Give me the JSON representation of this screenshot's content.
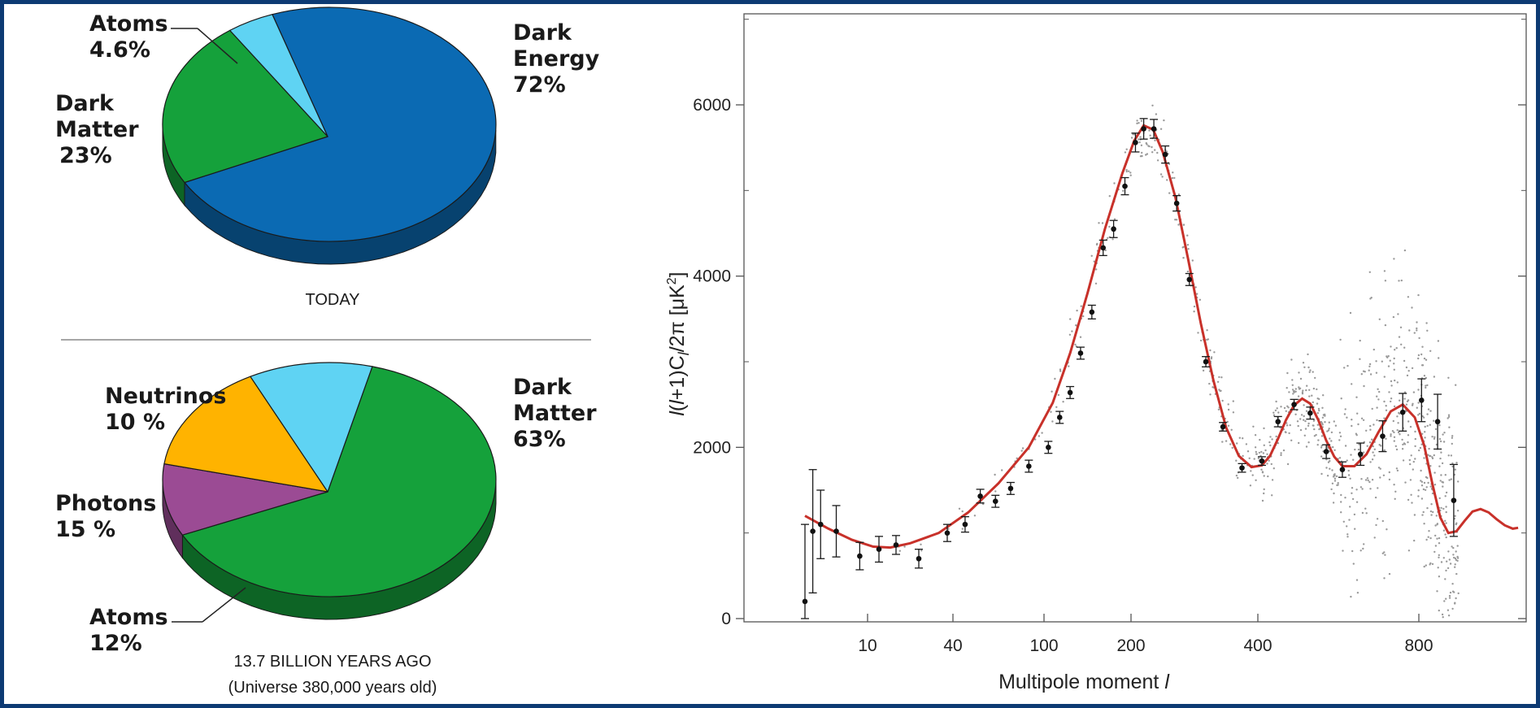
{
  "chart_data": [
    {
      "type": "pie",
      "caption": "TODAY",
      "slices": [
        {
          "label": "Dark",
          "label2": "Energy",
          "pct": "72%",
          "value": 72,
          "color": "#0b6ab3"
        },
        {
          "label": "Dark",
          "label2": "Matter",
          "pct": "23%",
          "value": 23,
          "color": "#15a13b"
        },
        {
          "label": "Atoms",
          "label2": "",
          "pct": "4.6%",
          "value": 4.6,
          "color": "#5fd3f3"
        }
      ]
    },
    {
      "type": "pie",
      "caption": "13.7 BILLION YEARS AGO",
      "caption2": "(Universe 380,000 years old)",
      "slices": [
        {
          "label": "Dark",
          "label2": "Matter",
          "pct": "63%",
          "value": 63,
          "color": "#15a13b"
        },
        {
          "label": "Neutrinos",
          "label2": "",
          "pct": "10 %",
          "value": 10,
          "color": "#9b4b94"
        },
        {
          "label": "Photons",
          "label2": "",
          "pct": "15 %",
          "value": 15,
          "color": "#ffb300"
        },
        {
          "label": "Atoms",
          "label2": "",
          "pct": "12%",
          "value": 12,
          "color": "#5fd3f3"
        }
      ]
    },
    {
      "type": "scatter",
      "xlabel": "Multipole moment",
      "xlabel_var": "l",
      "ylabel": "l(l+1)C_l/2π [μK²]",
      "x_ticks": [
        "10",
        "40",
        "100",
        "200",
        "400",
        "800"
      ],
      "y_ticks": [
        "0",
        "2000",
        "4000",
        "6000"
      ],
      "ylim": [
        0,
        7000
      ],
      "fit_color": "#c8312a",
      "fit_curve": {
        "x": [
          2,
          5,
          8,
          12,
          18,
          25,
          35,
          50,
          70,
          90,
          110,
          130,
          150,
          170,
          190,
          205,
          220,
          235,
          250,
          270,
          290,
          310,
          330,
          350,
          370,
          390,
          410,
          430,
          450,
          470,
          490,
          510,
          530,
          550,
          570,
          590,
          610,
          640,
          670,
          700,
          730,
          760,
          790,
          820,
          850,
          880,
          910,
          940,
          970,
          1000,
          1030,
          1060,
          1090,
          1120,
          1150,
          1170
        ],
        "y": [
          1200,
          1050,
          920,
          840,
          830,
          880,
          1000,
          1240,
          1580,
          2000,
          2520,
          3100,
          3800,
          4550,
          5200,
          5580,
          5760,
          5710,
          5450,
          4920,
          4200,
          3450,
          2780,
          2230,
          1900,
          1770,
          1790,
          1900,
          2100,
          2320,
          2490,
          2570,
          2510,
          2320,
          2080,
          1890,
          1780,
          1780,
          1920,
          2180,
          2420,
          2500,
          2350,
          2020,
          1580,
          1180,
          1000,
          1020,
          1140,
          1250,
          1280,
          1240,
          1160,
          1090,
          1050,
          1060
        ]
      },
      "binned": [
        {
          "x": 2,
          "y": 200,
          "e": 900
        },
        {
          "x": 3,
          "y": 1020,
          "e": 720
        },
        {
          "x": 4,
          "y": 1100,
          "e": 400
        },
        {
          "x": 6,
          "y": 1020,
          "e": 300
        },
        {
          "x": 9,
          "y": 730,
          "e": 160
        },
        {
          "x": 14,
          "y": 810,
          "e": 150
        },
        {
          "x": 20,
          "y": 860,
          "e": 110
        },
        {
          "x": 28,
          "y": 700,
          "e": 110
        },
        {
          "x": 38,
          "y": 1000,
          "e": 100
        },
        {
          "x": 48,
          "y": 1100,
          "e": 90
        },
        {
          "x": 58,
          "y": 1430,
          "e": 80
        },
        {
          "x": 68,
          "y": 1370,
          "e": 70
        },
        {
          "x": 78,
          "y": 1520,
          "e": 70
        },
        {
          "x": 90,
          "y": 1780,
          "e": 70
        },
        {
          "x": 105,
          "y": 2000,
          "e": 70
        },
        {
          "x": 118,
          "y": 2350,
          "e": 70
        },
        {
          "x": 130,
          "y": 2640,
          "e": 70
        },
        {
          "x": 142,
          "y": 3100,
          "e": 70
        },
        {
          "x": 155,
          "y": 3580,
          "e": 80
        },
        {
          "x": 168,
          "y": 4330,
          "e": 90
        },
        {
          "x": 180,
          "y": 4550,
          "e": 100
        },
        {
          "x": 193,
          "y": 5050,
          "e": 100
        },
        {
          "x": 207,
          "y": 5560,
          "e": 110
        },
        {
          "x": 220,
          "y": 5720,
          "e": 120
        },
        {
          "x": 236,
          "y": 5720,
          "e": 110
        },
        {
          "x": 254,
          "y": 5420,
          "e": 100
        },
        {
          "x": 272,
          "y": 4850,
          "e": 90
        },
        {
          "x": 292,
          "y": 3960,
          "e": 70
        },
        {
          "x": 318,
          "y": 3000,
          "e": 60
        },
        {
          "x": 345,
          "y": 2240,
          "e": 50
        },
        {
          "x": 375,
          "y": 1760,
          "e": 50
        },
        {
          "x": 410,
          "y": 1840,
          "e": 50
        },
        {
          "x": 450,
          "y": 2300,
          "e": 60
        },
        {
          "x": 490,
          "y": 2500,
          "e": 60
        },
        {
          "x": 530,
          "y": 2400,
          "e": 70
        },
        {
          "x": 570,
          "y": 1950,
          "e": 80
        },
        {
          "x": 610,
          "y": 1740,
          "e": 90
        },
        {
          "x": 655,
          "y": 1920,
          "e": 130
        },
        {
          "x": 710,
          "y": 2130,
          "e": 180
        },
        {
          "x": 760,
          "y": 2410,
          "e": 220
        },
        {
          "x": 810,
          "y": 2550,
          "e": 250
        },
        {
          "x": 870,
          "y": 2300,
          "e": 320
        },
        {
          "x": 930,
          "y": 1380,
          "e": 420
        }
      ]
    }
  ]
}
